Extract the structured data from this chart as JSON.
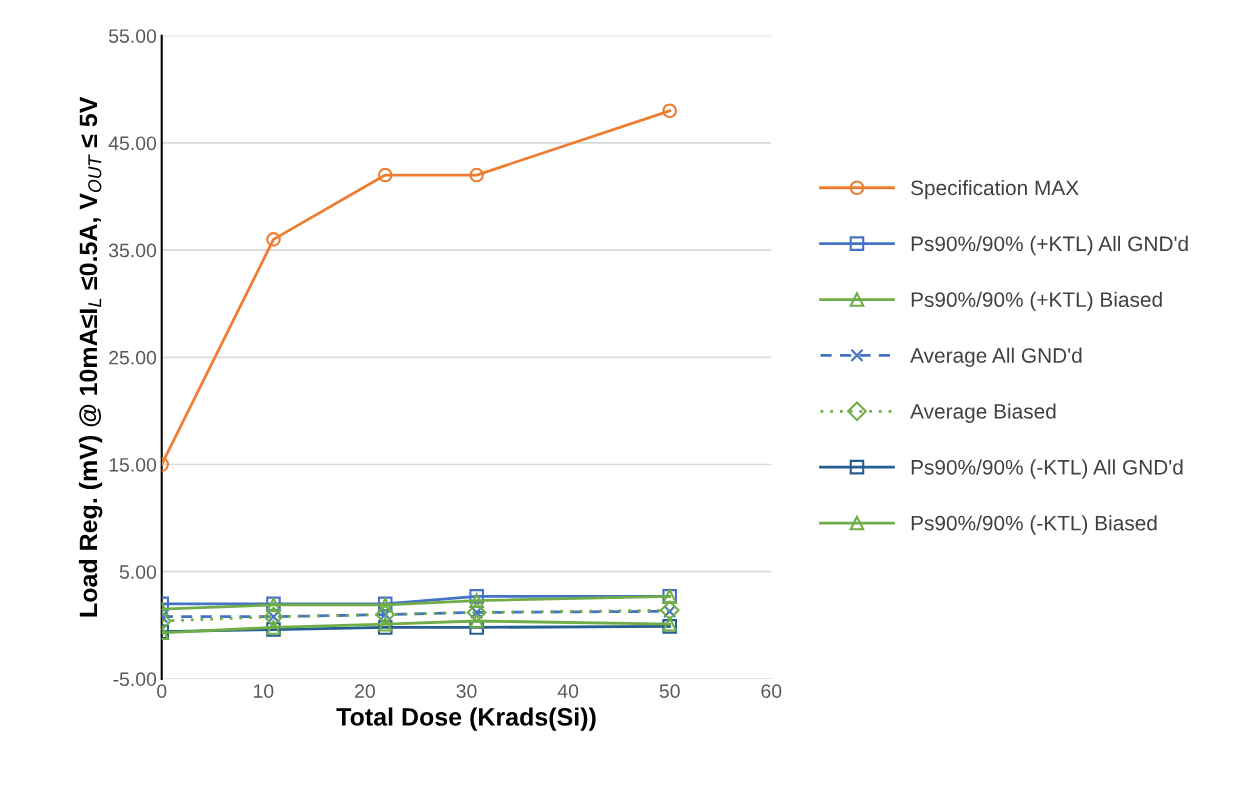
{
  "chart_data": {
    "type": "line",
    "xlabel": "Total Dose (Krads(Si))",
    "ylabel": "Load Reg. (mV) @ 10mA≤I$_{L}$ ≤0.5A, V$_{OUT}$ ≤ 5V",
    "x": [
      0,
      11,
      22,
      31,
      50
    ],
    "xlim": [
      0,
      60
    ],
    "xticks": [
      0,
      10,
      20,
      30,
      40,
      50,
      60
    ],
    "ylim": [
      -5,
      55
    ],
    "yticks": [
      {
        "value": -5,
        "label": "-5.00"
      },
      {
        "value": 5,
        "label": "5.00"
      },
      {
        "value": 15,
        "label": "15.00"
      },
      {
        "value": 25,
        "label": "25.00"
      },
      {
        "value": 35,
        "label": "35.00"
      },
      {
        "value": 45,
        "label": "45.00"
      },
      {
        "value": 55,
        "label": "55.00"
      }
    ],
    "grid": "y",
    "legend": "right",
    "series": [
      {
        "name": "Specification MAX",
        "color": "#ed7d31",
        "values": [
          15,
          36,
          42,
          42,
          48
        ],
        "marker": "circle",
        "line_style": "solid"
      },
      {
        "name": "Ps90%/90% (+KTL) All GND'd",
        "color": "#4472c4",
        "values": [
          2.0,
          2.0,
          2.0,
          2.7,
          2.7
        ],
        "marker": "square",
        "line_style": "solid"
      },
      {
        "name": "Ps90%/90% (+KTL) Biased",
        "color": "#70ad47",
        "values": [
          1.5,
          1.9,
          1.9,
          2.3,
          2.7
        ],
        "marker": "triangle",
        "line_style": "solid"
      },
      {
        "name": "Average All GND'd",
        "color": "#4472c4",
        "values": [
          0.8,
          0.8,
          1.0,
          1.2,
          1.3
        ],
        "marker": "cross",
        "line_style": "dashed"
      },
      {
        "name": "Average Biased",
        "color": "#70ad47",
        "values": [
          0.4,
          0.8,
          1.0,
          1.2,
          1.4
        ],
        "marker": "diamond",
        "line_style": "dotted"
      },
      {
        "name": "Ps90%/90% (-KTL) All GND'd",
        "color": "#255e91",
        "values": [
          -0.6,
          -0.4,
          -0.2,
          -0.2,
          -0.1
        ],
        "marker": "square",
        "line_style": "solid"
      },
      {
        "name": "Ps90%/90% (-KTL) Biased",
        "color": "#70ad47",
        "values": [
          -0.7,
          -0.2,
          0.1,
          0.4,
          0.1
        ],
        "marker": "triangle",
        "line_style": "solid"
      }
    ]
  }
}
